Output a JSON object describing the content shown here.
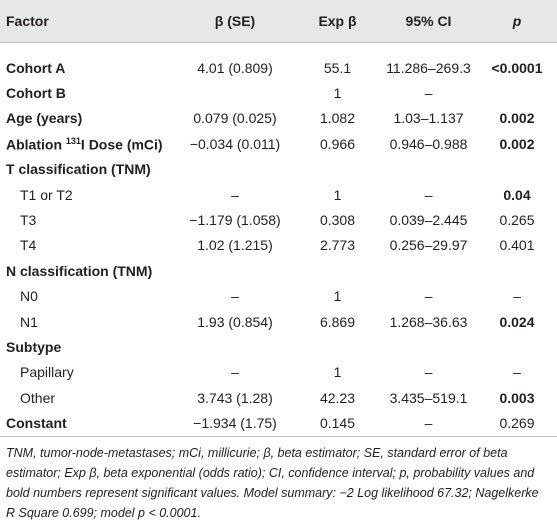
{
  "table": {
    "header": [
      "Factor",
      "β (SE)",
      "Exp β",
      "95% CI",
      "p"
    ],
    "rows": [
      {
        "factor": "Cohort A",
        "beta_se": "4.01 (0.809)",
        "exp_beta": "55.1",
        "ci": "11.286–269.3",
        "p": "<0.0001"
      },
      {
        "factor": "Cohort B",
        "exp_beta": "1",
        "ci": "–"
      },
      {
        "factor": "Age (years)",
        "beta_se": "0.079 (0.025)",
        "exp_beta": "1.082",
        "ci": "1.03–1.137",
        "p": "0.002"
      },
      {
        "factor": {
          "before": "Ablation",
          "sup": "131",
          "after": "I Dose (mCi)"
        },
        "beta_se": "−0.034 (0.011)",
        "exp_beta": "0.966",
        "ci": "0.946–0.988",
        "p": "0.002"
      },
      {
        "factor": "T classification (TNM)"
      },
      {
        "factor": "T1 or T2",
        "beta_se": "–",
        "exp_beta": "1",
        "ci": "–",
        "p": "0.04"
      },
      {
        "factor": "T3",
        "beta_se": "−1.179 (1.058)",
        "exp_beta": "0.308",
        "ci": "0.039–2.445",
        "p": "0.265"
      },
      {
        "factor": "T4",
        "beta_se": "1.02 (1.215)",
        "exp_beta": "2.773",
        "ci": "0.256–29.97",
        "p": "0.401"
      },
      {
        "factor": "N classification (TNM)"
      },
      {
        "factor": "N0",
        "beta_se": "–",
        "exp_beta": "1",
        "ci": "–",
        "p": "–"
      },
      {
        "factor": "N1",
        "beta_se": "1.93 (0.854)",
        "exp_beta": "6.869",
        "ci": "1.268–36.63",
        "p": "0.024"
      },
      {
        "factor": "Subtype"
      },
      {
        "factor": "Papillary",
        "beta_se": "–",
        "exp_beta": "1",
        "ci": "–",
        "p": "–"
      },
      {
        "factor": "Other",
        "beta_se": "3.743 (1.28)",
        "exp_beta": "42.23",
        "ci": "3.435–519.1",
        "p": "0.003"
      },
      {
        "factor": "Constant",
        "beta_se": "−1.934 (1.75)",
        "exp_beta": "0.145",
        "ci": "–",
        "p": "0.269"
      }
    ]
  },
  "footnote": "TNM, tumor-node-metastases; mCi, millicurie; β, beta estimator; SE, standard error of beta estimator; Exp β, beta exponential (odds ratio); CI, confidence interval; p, probability values and bold numbers represent significant values. Model summary: −2 Log likelihood 67.32; Nagelkerke R Square 0.699; model p < 0.0001."
}
